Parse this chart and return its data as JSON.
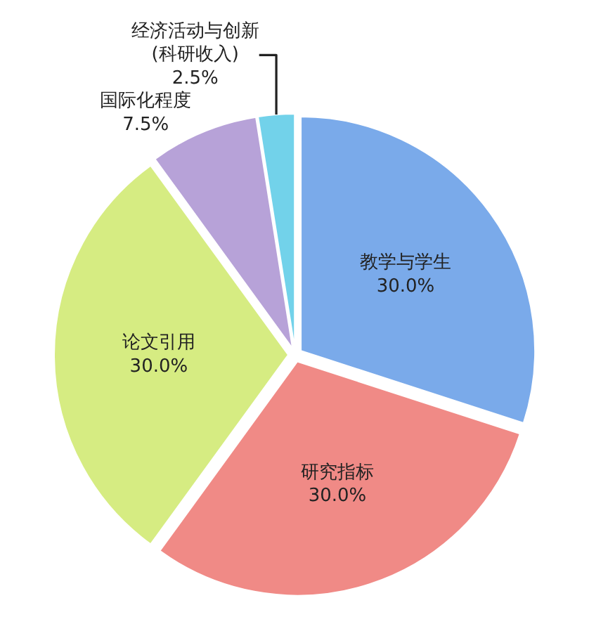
{
  "chart_data": {
    "type": "pie",
    "categories": [
      "教学与学生",
      "研究指标",
      "论文引用",
      "国际化程度",
      "经济活动与创新\n(科研收入)"
    ],
    "values": [
      30.0,
      30.0,
      30.0,
      7.5,
      2.5
    ],
    "value_labels": [
      "30.0%",
      "30.0%",
      "30.0%",
      "7.5%",
      "2.5%"
    ],
    "colors": [
      "#7aaaea",
      "#f08a86",
      "#d6ec82",
      "#b7a2d8",
      "#72d2ea"
    ],
    "legend": false
  }
}
